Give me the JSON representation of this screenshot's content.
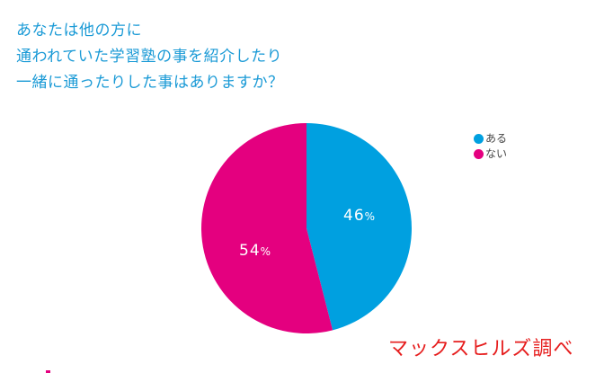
{
  "title": {
    "lines": [
      "あなたは他の方に",
      "通われていた学習塾の事を紹介したり",
      "一緒に通ったりした事はありますか？"
    ],
    "color": "#1a9ad6"
  },
  "legend": {
    "items": [
      {
        "label": "ある",
        "color": "#00a0e0"
      },
      {
        "label": "ない",
        "color": "#e4007f"
      }
    ]
  },
  "slice_labels": {
    "aru": {
      "value": "46",
      "unit": "%"
    },
    "nai": {
      "value": "54",
      "unit": "%"
    }
  },
  "source": "マックスヒルズ調べ",
  "chart_data": {
    "type": "pie",
    "title": "あなたは他の方に通われていた学習塾の事を紹介したり一緒に通ったりした事はありますか？",
    "categories": [
      "ある",
      "ない"
    ],
    "values": [
      46,
      54
    ],
    "colors": [
      "#00a0e0",
      "#e4007f"
    ],
    "unit": "%",
    "legend_position": "right",
    "start_angle": "12 o'clock, clockwise",
    "annotation": "マックスヒルズ調べ"
  }
}
